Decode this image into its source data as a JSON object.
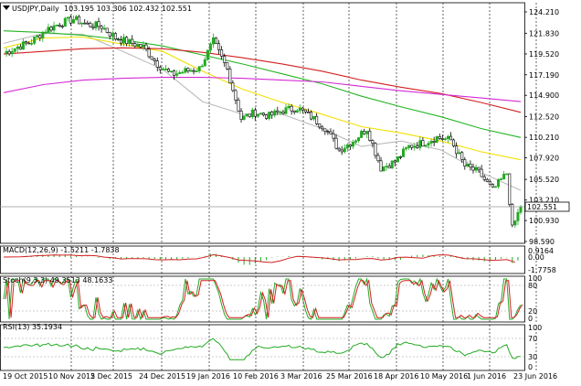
{
  "header": {
    "symbol_label": "USDJPY,Daily",
    "ohlc": "103.195 103.306 102.432 102.551"
  },
  "colors": {
    "bull": "#22aa22",
    "grid": "#000000",
    "ma_gray": "#bbbbbb",
    "ma_yellow": "#f2e100",
    "ma_green": "#23b523",
    "ma_red": "#d32020",
    "ma_magenta": "#d62ad6",
    "macd_hist": "#22aa22",
    "macd_signal": "#d32020",
    "stoch_main": "#22aa22",
    "stoch_signal": "#d32020",
    "rsi": "#22aa22",
    "badge_bg": "#ffffff"
  },
  "price_axis": {
    "ticks": [
      "124.210",
      "121.830",
      "119.520",
      "117.190",
      "114.900",
      "112.520",
      "110.210",
      "107.920",
      "105.520",
      "103.210",
      "100.930",
      "98.590"
    ],
    "current": "102.551"
  },
  "macd": {
    "label": "MACD(12,26,9) -1.5211 -1.7838",
    "ticks": [
      "0.9164",
      "0.00",
      "-1.7758"
    ]
  },
  "stoch": {
    "label": "Stoch(9,3,3) 49.3513 48.1633",
    "ticks": [
      "100",
      "80",
      "20",
      "0"
    ]
  },
  "rsi": {
    "label": "RSI(13) 35.1934",
    "ticks": [
      "100",
      "70",
      "30",
      "0"
    ]
  },
  "time_axis": [
    "19 Oct 2015",
    "10 Nov 2015",
    "2 Dec 2015",
    "24 Dec 2015",
    "19 Jan 2016",
    "10 Feb 2016",
    "3 Mar 2016",
    "25 Mar 2016",
    "18 Apr 2016",
    "10 May 2016",
    "1 Jun 2016",
    "23 Jun 2016"
  ],
  "chart_data": {
    "type": "candlestick",
    "symbol": "USDJPY",
    "timeframe": "Daily",
    "x_range": [
      "19 Oct 2015",
      "23 Jun 2016"
    ],
    "y_range": [
      98.59,
      124.21
    ],
    "close_path": [
      {
        "x": 0,
        "y": 119.6
      },
      {
        "x": 5,
        "y": 120.3
      },
      {
        "x": 10,
        "y": 120.9
      },
      {
        "x": 15,
        "y": 122.2
      },
      {
        "x": 20,
        "y": 122.9
      },
      {
        "x": 25,
        "y": 123.4
      },
      {
        "x": 30,
        "y": 122.8
      },
      {
        "x": 35,
        "y": 122.6
      },
      {
        "x": 40,
        "y": 121.3
      },
      {
        "x": 45,
        "y": 120.8
      },
      {
        "x": 50,
        "y": 120.3
      },
      {
        "x": 55,
        "y": 118.4
      },
      {
        "x": 60,
        "y": 117.2
      },
      {
        "x": 65,
        "y": 117.6
      },
      {
        "x": 70,
        "y": 117.9
      },
      {
        "x": 75,
        "y": 120.9
      },
      {
        "x": 80,
        "y": 117.8
      },
      {
        "x": 85,
        "y": 112.3
      },
      {
        "x": 90,
        "y": 113.0
      },
      {
        "x": 95,
        "y": 112.6
      },
      {
        "x": 100,
        "y": 113.2
      },
      {
        "x": 105,
        "y": 113.5
      },
      {
        "x": 110,
        "y": 112.5
      },
      {
        "x": 115,
        "y": 111.3
      },
      {
        "x": 120,
        "y": 108.8
      },
      {
        "x": 125,
        "y": 109.8
      },
      {
        "x": 130,
        "y": 111.2
      },
      {
        "x": 135,
        "y": 106.8
      },
      {
        "x": 140,
        "y": 107.5
      },
      {
        "x": 145,
        "y": 109.2
      },
      {
        "x": 150,
        "y": 109.6
      },
      {
        "x": 155,
        "y": 110.2
      },
      {
        "x": 160,
        "y": 109.9
      },
      {
        "x": 165,
        "y": 107.0
      },
      {
        "x": 170,
        "y": 106.3
      },
      {
        "x": 175,
        "y": 104.3
      },
      {
        "x": 180,
        "y": 106.2
      },
      {
        "x": 182,
        "y": 100.0
      },
      {
        "x": 185,
        "y": 102.55
      }
    ],
    "moving_averages": [
      {
        "color": "gray",
        "values": [
          120.7,
          121.8,
          121.7,
          119.8,
          117.8,
          114.2,
          112.8,
          112.8,
          111.2,
          109.2,
          109.8,
          108.8,
          106.3,
          104.3
        ]
      },
      {
        "color": "yellow",
        "values": [
          120.2,
          121.3,
          121.4,
          120.6,
          119.8,
          117.6,
          115.6,
          114.1,
          112.8,
          111.4,
          110.7,
          109.8,
          108.6,
          107.7
        ]
      },
      {
        "color": "green",
        "values": [
          122.1,
          121.9,
          121.6,
          121.1,
          120.4,
          119.4,
          118.4,
          117.3,
          116.2,
          114.8,
          113.6,
          112.5,
          111.2,
          110.2
        ]
      },
      {
        "color": "red",
        "values": [
          119.5,
          119.8,
          120.1,
          120.2,
          120.1,
          119.7,
          119.1,
          118.4,
          117.6,
          116.6,
          115.8,
          115.1,
          114.1,
          113.0
        ]
      },
      {
        "color": "magenta",
        "values": [
          115.2,
          116.1,
          116.6,
          116.8,
          116.9,
          116.9,
          116.8,
          116.6,
          116.4,
          115.9,
          115.4,
          115.0,
          114.6,
          114.2
        ]
      }
    ]
  }
}
